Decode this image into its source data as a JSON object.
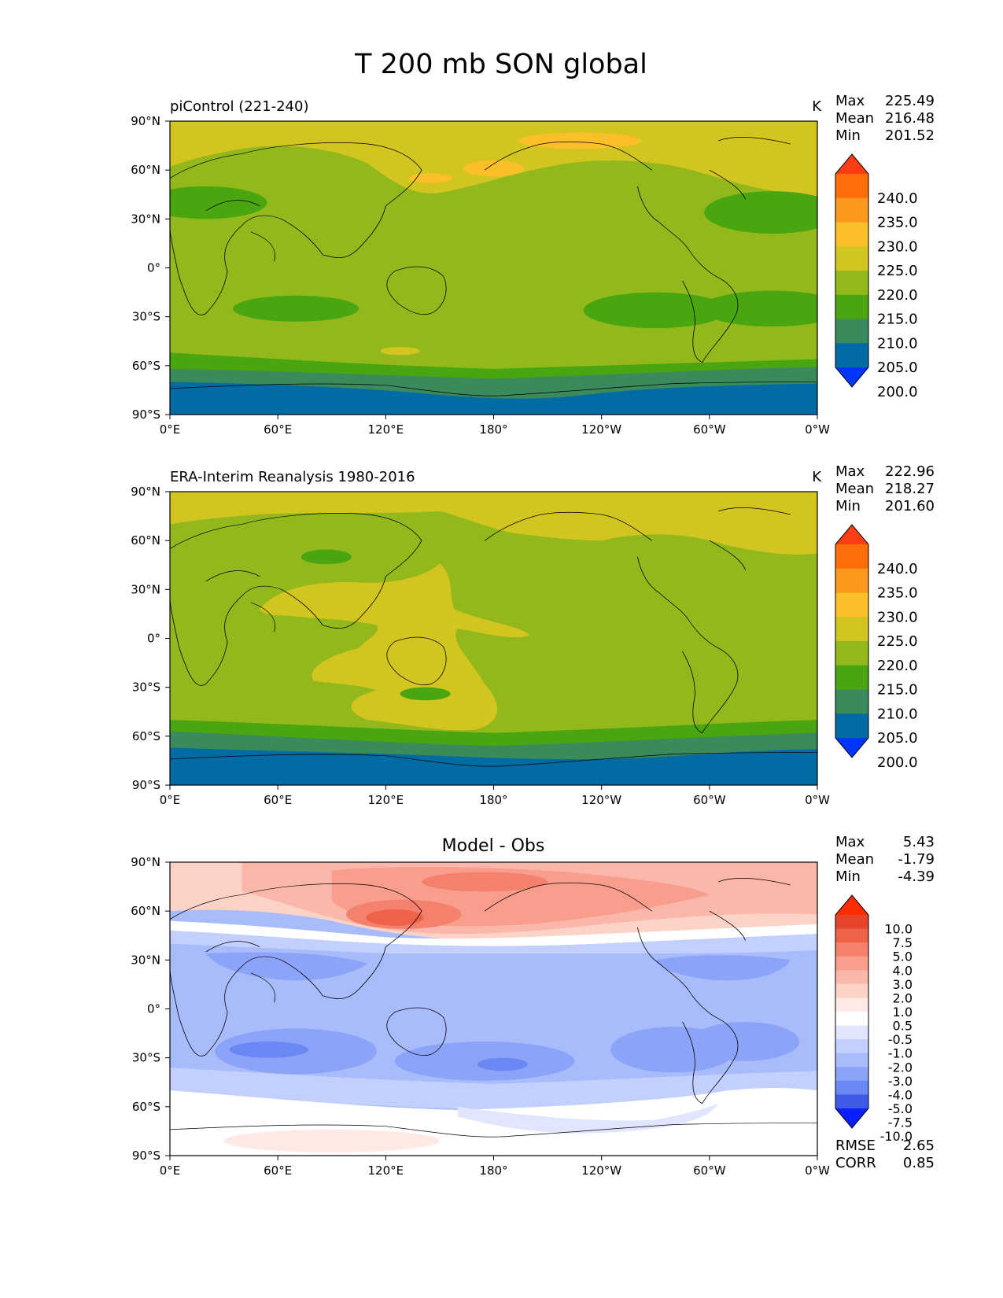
{
  "title": "T 200 mb SON global",
  "x_ticks": [
    "0°E",
    "60°E",
    "120°E",
    "180°",
    "120°W",
    "60°W",
    "0°W"
  ],
  "y_ticks": [
    "90°N",
    "60°N",
    "30°N",
    "0°",
    "30°S",
    "60°S",
    "90°S"
  ],
  "colors": {
    "abs": [
      "#0035fe",
      "#016ba3",
      "#3a8a5c",
      "#49a510",
      "#92b81b",
      "#d2c51f",
      "#fbc027",
      "#fd981f",
      "#fd6e0b",
      "#ff3d15"
    ],
    "diff": [
      "#0a1fff",
      "#3f5ae6",
      "#6a88f4",
      "#8ca4f8",
      "#a8bbfb",
      "#c3d0fd",
      "#e1e6fe",
      "#ffffff",
      "#fee9e4",
      "#fdd3c8",
      "#fbb8aa",
      "#f99d8c",
      "#f4806e",
      "#ef6248",
      "#e7452a",
      "#ff2d00"
    ]
  },
  "chart_data": [
    {
      "type": "heatmap",
      "panel": "top",
      "title_left": "piControl (221-240)",
      "units": "K",
      "stats": {
        "Max": "225.49",
        "Mean": "216.48",
        "Min": "201.52"
      },
      "colorbar_labels": [
        "240.0",
        "235.0",
        "230.0",
        "225.0",
        "220.0",
        "215.0",
        "210.0",
        "205.0",
        "200.0"
      ],
      "levels": [
        200,
        205,
        210,
        215,
        220,
        225,
        230,
        235,
        240
      ],
      "xlim": [
        0,
        360
      ],
      "ylim": [
        -90,
        90
      ]
    },
    {
      "type": "heatmap",
      "panel": "middle",
      "title_left": "ERA-Interim Reanalysis 1980-2016",
      "units": "K",
      "stats": {
        "Max": "222.96",
        "Mean": "218.27",
        "Min": "201.60"
      },
      "colorbar_labels": [
        "240.0",
        "235.0",
        "230.0",
        "225.0",
        "220.0",
        "215.0",
        "210.0",
        "205.0",
        "200.0"
      ],
      "levels": [
        200,
        205,
        210,
        215,
        220,
        225,
        230,
        235,
        240
      ],
      "xlim": [
        0,
        360
      ],
      "ylim": [
        -90,
        90
      ]
    },
    {
      "type": "heatmap",
      "panel": "bottom",
      "title_center": "Model - Obs",
      "stats": {
        "Max": "5.43",
        "Mean": "-1.79",
        "Min": "-4.39"
      },
      "colorbar_labels": [
        "10.0",
        "7.5",
        "5.0",
        "4.0",
        "3.0",
        "2.0",
        "1.0",
        "0.5",
        "-0.5",
        "-1.0",
        "-2.0",
        "-3.0",
        "-4.0",
        "-5.0",
        "-7.5",
        "-10.0"
      ],
      "levels": [
        -10,
        -7.5,
        -5,
        -4,
        -3,
        -2,
        -1,
        -0.5,
        0.5,
        1,
        2,
        3,
        4,
        5,
        7.5,
        10
      ],
      "metrics": {
        "RMSE": "2.65",
        "CORR": "0.85"
      },
      "xlim": [
        0,
        360
      ],
      "ylim": [
        -90,
        90
      ]
    }
  ]
}
